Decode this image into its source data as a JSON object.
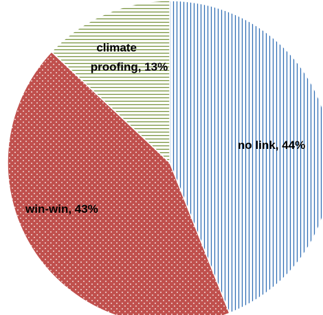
{
  "chart_data": {
    "type": "pie",
    "title": "",
    "start_angle_deg": 0,
    "direction": "clockwise",
    "slices": [
      {
        "label": "no link, 44%",
        "category": "no link",
        "value": 44,
        "pattern": "vertical-lines",
        "color": "#2E6DB4"
      },
      {
        "label": "win-win, 43%",
        "category": "win-win",
        "value": 43,
        "pattern": "dots",
        "color": "#C0504D"
      },
      {
        "label_lines": [
          "climate",
          "proofing, 13%"
        ],
        "category": "climate proofing",
        "value": 13,
        "pattern": "horizontal-lines",
        "color": "#77933C"
      }
    ]
  }
}
